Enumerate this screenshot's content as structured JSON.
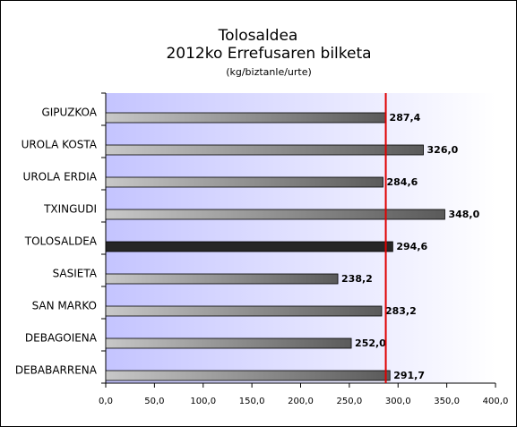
{
  "chart_data": {
    "type": "bar",
    "orientation": "horizontal",
    "title": "Tolosaldea",
    "subtitle": "2012ko Errefusaren bilketa",
    "unit_label": "(kg/biztanle/urte)",
    "categories": [
      "GIPUZKOA",
      "UROLA KOSTA",
      "UROLA ERDIA",
      "TXINGUDI",
      "TOLOSALDEA",
      "SASIETA",
      "SAN MARKO",
      "DEBAGOIENA",
      "DEBABARRENA"
    ],
    "values": [
      287.4,
      326.0,
      284.6,
      348.0,
      294.6,
      238.2,
      283.2,
      252.0,
      291.7
    ],
    "value_labels": [
      "287,4",
      "326,0",
      "284,6",
      "348,0",
      "294,6",
      "238,2",
      "283,2",
      "252,0",
      "291,7"
    ],
    "colors": [
      "#5a5a5a",
      "#5a5a5a",
      "#5a5a5a",
      "#5a5a5a",
      "#262626",
      "#5a5a5a",
      "#5a5a5a",
      "#5a5a5a",
      "#5a5a5a"
    ],
    "reference_line": 287.4,
    "reference_color": "#e00000",
    "xlim": [
      0,
      400
    ],
    "xticks": [
      {
        "value": 0,
        "label": "0,0"
      },
      {
        "value": 50,
        "label": "50,0"
      },
      {
        "value": 100,
        "label": "100,0"
      },
      {
        "value": 150,
        "label": "150,0"
      },
      {
        "value": 200,
        "label": "200,0"
      },
      {
        "value": 250,
        "label": "250,0"
      },
      {
        "value": 300,
        "label": "300,0"
      },
      {
        "value": 350,
        "label": "350,0"
      },
      {
        "value": 400,
        "label": "400,0"
      }
    ]
  }
}
